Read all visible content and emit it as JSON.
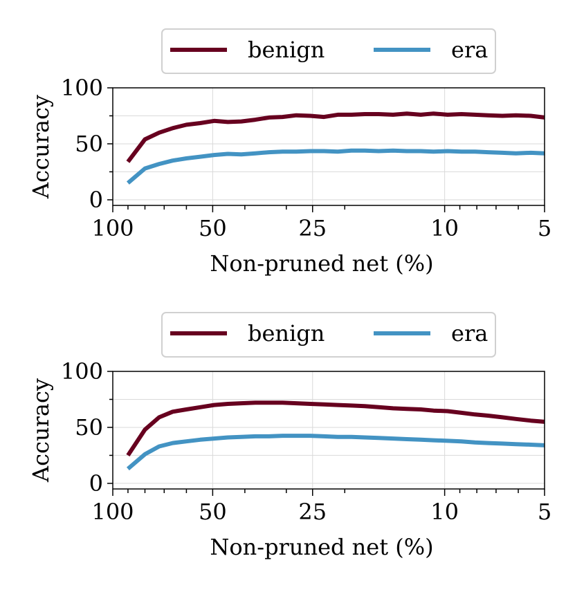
{
  "chart_data": [
    {
      "type": "line",
      "xlabel": "Non-pruned net (%)",
      "ylabel": "Accuracy",
      "xscale": "log",
      "x_reversed": true,
      "xlim": [
        100,
        5
      ],
      "ylim": [
        -5,
        100
      ],
      "xticks": [
        100,
        50,
        25,
        10,
        5
      ],
      "xtick_labels": [
        "100",
        "50",
        "25",
        "10",
        "5"
      ],
      "yticks": [
        0,
        50,
        100
      ],
      "ytick_labels": [
        "0",
        "50",
        "100"
      ],
      "grid": true,
      "legend": {
        "placement": "top-center",
        "entries": [
          "benign",
          "era"
        ]
      },
      "x": [
        90,
        80,
        72.5,
        66,
        60,
        54.5,
        49.5,
        45,
        41,
        37.2,
        33.8,
        30.8,
        28,
        25.4,
        23.1,
        21,
        19.1,
        17.4,
        15.8,
        14.3,
        13,
        11.8,
        10.8,
        9.8,
        8.9,
        8.1,
        7.4,
        6.7,
        6.1,
        5.5,
        5
      ],
      "series": [
        {
          "name": "benign",
          "color": "#67001f",
          "values": [
            34,
            54,
            60,
            64,
            67,
            68.5,
            70.5,
            69.5,
            70,
            71.5,
            73.5,
            74,
            75.5,
            75,
            74,
            76,
            76,
            76.5,
            76.5,
            76,
            77,
            76,
            77,
            76,
            76.5,
            76,
            75.5,
            75,
            75.5,
            75,
            73.5
          ]
        },
        {
          "name": "era",
          "color": "#4393c3",
          "values": [
            15,
            28,
            32,
            35,
            37,
            38.5,
            40,
            41,
            40.5,
            41.5,
            42.5,
            43,
            43,
            43.5,
            43.5,
            43,
            44,
            44,
            43.5,
            44,
            43.5,
            43.5,
            43,
            43.5,
            43,
            43,
            42.5,
            42,
            41.5,
            42,
            41.5
          ]
        }
      ]
    },
    {
      "type": "line",
      "xlabel": "Non-pruned net (%)",
      "ylabel": "Accuracy",
      "xscale": "log",
      "x_reversed": true,
      "xlim": [
        100,
        5
      ],
      "ylim": [
        -5,
        100
      ],
      "xticks": [
        100,
        50,
        25,
        10,
        5
      ],
      "xtick_labels": [
        "100",
        "50",
        "25",
        "10",
        "5"
      ],
      "yticks": [
        0,
        50,
        100
      ],
      "ytick_labels": [
        "0",
        "50",
        "100"
      ],
      "grid": true,
      "legend": {
        "placement": "top-center",
        "entries": [
          "benign",
          "era"
        ]
      },
      "x": [
        90,
        80,
        72.5,
        66,
        60,
        54.5,
        49.5,
        45,
        41,
        37.2,
        33.8,
        30.8,
        28,
        25.4,
        23.1,
        21,
        19.1,
        17.4,
        15.8,
        14.3,
        13,
        11.8,
        10.8,
        9.8,
        8.9,
        8.1,
        7.4,
        6.7,
        6.1,
        5.5,
        5
      ],
      "series": [
        {
          "name": "benign",
          "color": "#67001f",
          "values": [
            25,
            48,
            59,
            64,
            66,
            68,
            70,
            71,
            71.5,
            72,
            72,
            72,
            71.5,
            71,
            70.5,
            70,
            69.5,
            69,
            68,
            67,
            66.5,
            66,
            65,
            64.5,
            63,
            61.5,
            60.5,
            59,
            57.5,
            56,
            55
          ]
        },
        {
          "name": "era",
          "color": "#4393c3",
          "values": [
            13,
            26,
            33,
            36,
            37.5,
            39,
            40,
            41,
            41.5,
            42,
            42,
            42.5,
            42.5,
            42.5,
            42,
            41.5,
            41.5,
            41,
            40.5,
            40,
            39.5,
            39,
            38.5,
            38,
            37.5,
            36.5,
            36,
            35.5,
            35,
            34.5,
            34
          ]
        }
      ]
    }
  ]
}
